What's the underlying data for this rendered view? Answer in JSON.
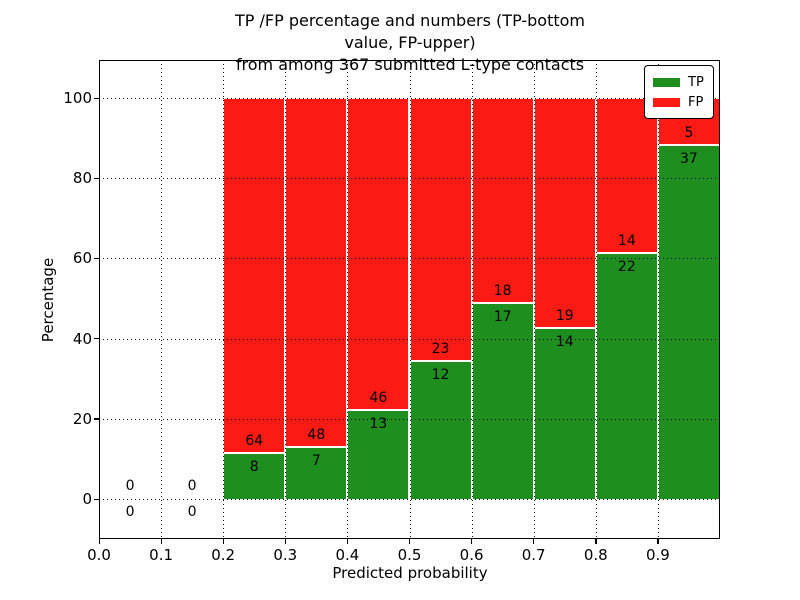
{
  "chart_data": {
    "type": "bar",
    "stacked": true,
    "normalized_to_percent": true,
    "title": "TP /FP percentage and numbers (TP-bottom value, FP-upper)\nfrom among 367 submitted L-type contacts",
    "xlabel": "Predicted probability",
    "ylabel": "Percentage",
    "xlim": [
      0.0,
      1.0
    ],
    "ylim": [
      -10,
      110
    ],
    "grid": "dotted black, both axes",
    "x_tick_labels": [
      "0.0",
      "0.1",
      "0.2",
      "0.3",
      "0.4",
      "0.5",
      "0.6",
      "0.7",
      "0.8",
      "0.9"
    ],
    "y_tick_labels": [
      "0",
      "20",
      "40",
      "60",
      "80",
      "100"
    ],
    "y_tick_values": [
      0,
      20,
      40,
      60,
      80,
      100
    ],
    "total_contacts": 367,
    "legend": [
      {
        "label": "TP",
        "color": "#1e8f1e"
      },
      {
        "label": "FP",
        "color": "#fc1a15"
      }
    ],
    "legend_position": "upper right",
    "bins": [
      {
        "x0": 0.0,
        "x1": 0.1,
        "tp": 0,
        "fp": 0
      },
      {
        "x0": 0.1,
        "x1": 0.2,
        "tp": 0,
        "fp": 0
      },
      {
        "x0": 0.2,
        "x1": 0.3,
        "tp": 8,
        "fp": 64
      },
      {
        "x0": 0.3,
        "x1": 0.4,
        "tp": 7,
        "fp": 48
      },
      {
        "x0": 0.4,
        "x1": 0.5,
        "tp": 13,
        "fp": 46
      },
      {
        "x0": 0.5,
        "x1": 0.6,
        "tp": 12,
        "fp": 23
      },
      {
        "x0": 0.6,
        "x1": 0.7,
        "tp": 17,
        "fp": 18
      },
      {
        "x0": 0.7,
        "x1": 0.8,
        "tp": 14,
        "fp": 19
      },
      {
        "x0": 0.8,
        "x1": 0.9,
        "tp": 22,
        "fp": 14
      },
      {
        "x0": 0.9,
        "x1": 1.0,
        "tp": 37,
        "fp": 5
      }
    ]
  }
}
